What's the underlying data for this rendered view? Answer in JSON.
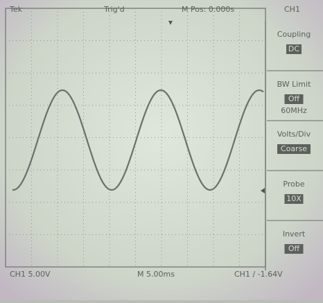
{
  "header": {
    "items": [
      "Tek",
      "Trig'd",
      "M Pos: 0.000s",
      "CH1"
    ]
  },
  "menu": [
    {
      "label": "Coupling",
      "value": "DC"
    },
    {
      "label": "BW Limit",
      "value": "Off",
      "note": "60MHz"
    },
    {
      "label": "Volts/Div",
      "value": "Coarse"
    },
    {
      "label": "Probe",
      "value": "10X"
    },
    {
      "label": "Invert",
      "value": "Off"
    }
  ],
  "footer": {
    "scale": "CH1 5.00V",
    "timebase": "M 5.00ms",
    "trigger": "CH1 ∕ -1.64V"
  }
}
